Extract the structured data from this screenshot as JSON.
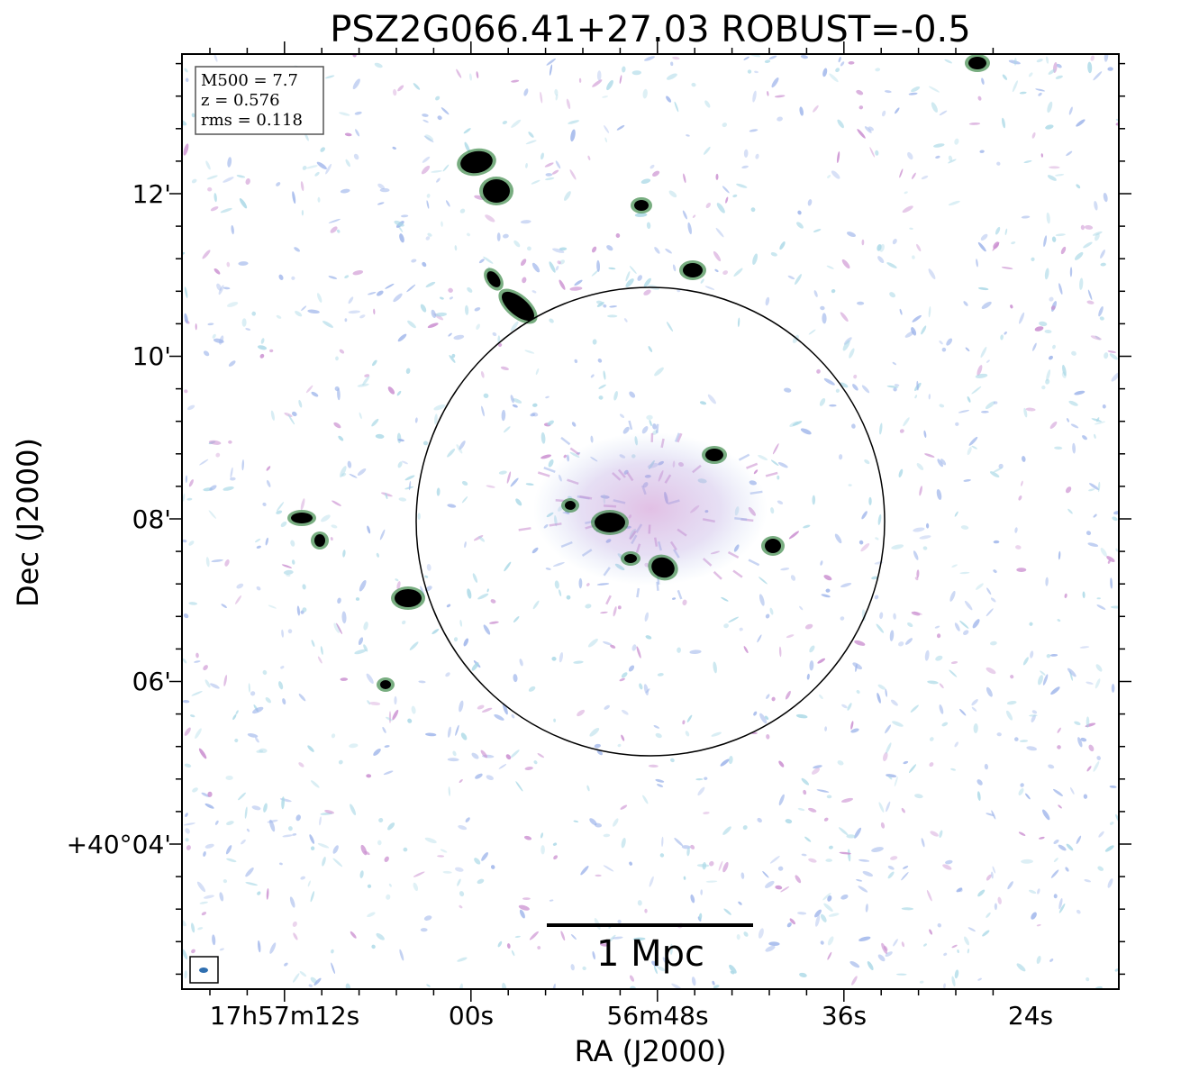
{
  "title": "PSZ2G066.41+27.03 ROBUST=-0.5",
  "info_box": {
    "lines": [
      "M500 = 7.7",
      "z = 0.576",
      "rms = 0.118"
    ]
  },
  "scale_bar": {
    "label": "1 Mpc"
  },
  "x_axis": {
    "label": "RA (J2000)",
    "ticks": [
      "17h57m12s",
      "00s",
      "56m48s",
      "36s",
      "24s"
    ]
  },
  "y_axis": {
    "label": "Dec (J2000)",
    "ticks": [
      "12'",
      "10'",
      "08'",
      "06'",
      "+40°04'"
    ]
  },
  "colors": {
    "noise_blue": "#9db4ea",
    "noise_cyan": "#a9d8e6",
    "noise_magenta": "#c98ccf",
    "source_core": "#000000",
    "source_halo": "#3f8a4a",
    "beam": "#2f6fb0"
  }
}
